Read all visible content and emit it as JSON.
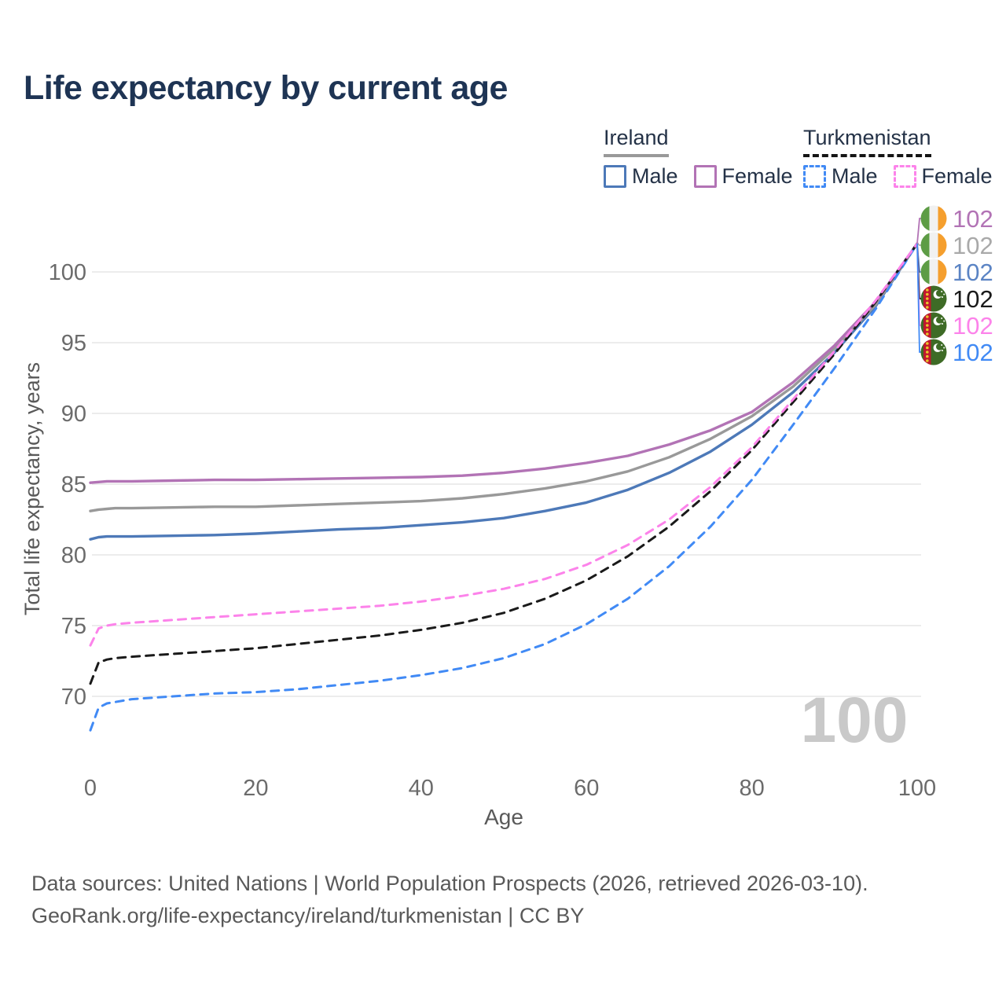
{
  "title": "Life expectancy by current age",
  "legend": {
    "groups": [
      {
        "id": "ireland",
        "label": "Ireland",
        "line_style": "solid",
        "underline_color": "#999999",
        "items": [
          {
            "label": "Male",
            "color": "#4d79b8"
          },
          {
            "label": "Female",
            "color": "#b273b5"
          }
        ]
      },
      {
        "id": "turkmenistan",
        "label": "Turkmenistan",
        "line_style": "dashed",
        "underline_color": "#151515",
        "items": [
          {
            "label": "Male",
            "color": "#418af5"
          },
          {
            "label": "Female",
            "color": "#fc83ea"
          }
        ]
      }
    ]
  },
  "watermark_current_age": "100",
  "footer": {
    "line1": "Data sources: United Nations | World Population Prospects (2026, retrieved 2026-03-10).",
    "line2": "GeoRank.org/life-expectancy/ireland/turkmenistan | CC BY"
  },
  "chart_data": {
    "type": "line",
    "title": "Life expectancy by current age",
    "xlabel": "Age",
    "ylabel": "Total life expectancy, years",
    "xlim": [
      0,
      100
    ],
    "ylim": [
      66,
      103
    ],
    "x_ticks": [
      0,
      20,
      40,
      60,
      80,
      100
    ],
    "y_ticks": [
      70,
      75,
      80,
      85,
      90,
      95,
      100
    ],
    "grid": true,
    "legend_position": "top-right",
    "x": [
      0,
      1,
      2,
      3,
      5,
      10,
      15,
      20,
      25,
      30,
      35,
      40,
      45,
      50,
      55,
      60,
      65,
      70,
      75,
      80,
      85,
      90,
      95,
      100
    ],
    "series": [
      {
        "name": "Ireland Male",
        "country": "Ireland",
        "sex": "male",
        "color": "#4d79b8",
        "dash": false,
        "values": [
          81.1,
          81.25,
          81.3,
          81.3,
          81.3,
          81.35,
          81.4,
          81.5,
          81.65,
          81.8,
          81.9,
          82.1,
          82.3,
          82.6,
          83.1,
          83.7,
          84.6,
          85.8,
          87.3,
          89.2,
          91.5,
          94.3,
          97.6,
          102
        ]
      },
      {
        "name": "Ireland Combined",
        "country": "Ireland",
        "sex": "both",
        "color": "#999999",
        "dash": false,
        "values": [
          83.1,
          83.2,
          83.25,
          83.3,
          83.3,
          83.35,
          83.4,
          83.4,
          83.5,
          83.6,
          83.7,
          83.8,
          84.0,
          84.3,
          84.7,
          85.2,
          85.9,
          86.9,
          88.2,
          89.8,
          91.9,
          94.6,
          97.7,
          102
        ]
      },
      {
        "name": "Ireland Female",
        "country": "Ireland",
        "sex": "female",
        "color": "#b273b5",
        "dash": false,
        "values": [
          85.1,
          85.15,
          85.2,
          85.2,
          85.2,
          85.25,
          85.3,
          85.3,
          85.35,
          85.4,
          85.45,
          85.5,
          85.6,
          85.8,
          86.1,
          86.5,
          87.0,
          87.8,
          88.8,
          90.1,
          92.2,
          94.8,
          97.9,
          102
        ]
      },
      {
        "name": "Turkmenistan Male",
        "country": "Turkmenistan",
        "sex": "male",
        "color": "#418af5",
        "dash": true,
        "values": [
          67.6,
          69.2,
          69.5,
          69.6,
          69.8,
          70.0,
          70.2,
          70.3,
          70.5,
          70.8,
          71.1,
          71.5,
          72.0,
          72.7,
          73.7,
          75.1,
          76.9,
          79.2,
          82.0,
          85.3,
          89.2,
          93.2,
          97.4,
          102
        ]
      },
      {
        "name": "Turkmenistan Combined",
        "country": "Turkmenistan",
        "sex": "both",
        "color": "#1a1a1a",
        "dash": true,
        "values": [
          70.9,
          72.4,
          72.6,
          72.7,
          72.8,
          73.0,
          73.2,
          73.4,
          73.7,
          74.0,
          74.3,
          74.7,
          75.2,
          75.9,
          76.9,
          78.2,
          79.9,
          82.0,
          84.5,
          87.4,
          90.8,
          94.2,
          97.9,
          102
        ]
      },
      {
        "name": "Turkmenistan Female",
        "country": "Turkmenistan",
        "sex": "female",
        "color": "#fc83ea",
        "dash": true,
        "values": [
          73.6,
          74.8,
          75.0,
          75.1,
          75.2,
          75.4,
          75.6,
          75.8,
          76.0,
          76.2,
          76.4,
          76.7,
          77.1,
          77.6,
          78.3,
          79.3,
          80.7,
          82.5,
          84.8,
          87.6,
          91.0,
          94.4,
          98.0,
          102
        ]
      }
    ],
    "end_labels": [
      {
        "value": "102",
        "flag": "ireland",
        "series": "Ireland Female",
        "color": "#b273b5"
      },
      {
        "value": "102",
        "flag": "ireland",
        "series": "Ireland Combined",
        "color": "#a9a9a9"
      },
      {
        "value": "102",
        "flag": "ireland",
        "series": "Ireland Male",
        "color": "#5b84c4"
      },
      {
        "value": "102",
        "flag": "turkmenistan",
        "series": "Turkmenistan Combined",
        "color": "#1a1a1a"
      },
      {
        "value": "102",
        "flag": "turkmenistan",
        "series": "Turkmenistan Female",
        "color": "#fc83ea"
      },
      {
        "value": "102",
        "flag": "turkmenistan",
        "series": "Turkmenistan Male",
        "color": "#418af5"
      }
    ],
    "flag_colors": {
      "ireland": {
        "green": "#5d9c45",
        "white": "#f1f1f1",
        "orange": "#f59f2e"
      },
      "turkmenistan": {
        "green": "#3e6b26",
        "red": "#c0172e",
        "yellow": "#e8c62a",
        "white": "#ffffff"
      }
    },
    "style": {
      "grid_color": "#ececec",
      "tick_color": "#6b6b6b",
      "axis_title_color": "#595959",
      "watermark_color": "#c9c9c9"
    }
  }
}
